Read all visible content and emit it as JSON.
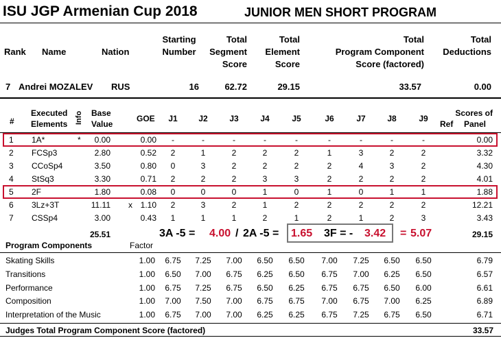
{
  "event_title": "ISU JGP Armenian Cup 2018",
  "segment_title": "JUNIOR MEN SHORT PROGRAM",
  "summary_headers": {
    "rank": "Rank",
    "name": "Name",
    "nation": "Nation",
    "starting_number": [
      "Starting",
      "Number"
    ],
    "tss": [
      "Total",
      "Segment",
      "Score"
    ],
    "tes": [
      "Total",
      "Element",
      "Score"
    ],
    "pcs": [
      "Total",
      "Program  Component",
      "Score (factored)"
    ],
    "ded": [
      "Total",
      "Deductions"
    ]
  },
  "skater": {
    "rank": "7",
    "name": "Andrei MOZALEV",
    "nation": "RUS",
    "starting_number": "16",
    "tss": "62.72",
    "tes": "29.15",
    "pcs": "33.57",
    "deductions": "0.00"
  },
  "elements_headers": {
    "num": "#",
    "executed": [
      "Executed",
      "Elements"
    ],
    "info": "Info",
    "base": [
      "Base",
      "Value"
    ],
    "goe": "GOE",
    "judges": [
      "J1",
      "J2",
      "J3",
      "J4",
      "J5",
      "J6",
      "J7",
      "J8",
      "J9"
    ],
    "ref": "Ref",
    "scores": [
      "Scores of",
      "Panel"
    ]
  },
  "elements": [
    {
      "num": "1",
      "name": "1A*",
      "info": "*",
      "base": "0.00",
      "x": "",
      "goe": "0.00",
      "j": [
        "-",
        "-",
        "-",
        "-",
        "-",
        "-",
        "-",
        "-",
        "-"
      ],
      "panel": "0.00",
      "highlight": true
    },
    {
      "num": "2",
      "name": "FCSp3",
      "info": "",
      "base": "2.80",
      "x": "",
      "goe": "0.52",
      "j": [
        "2",
        "1",
        "2",
        "2",
        "2",
        "1",
        "3",
        "2",
        "2"
      ],
      "panel": "3.32",
      "highlight": false
    },
    {
      "num": "3",
      "name": "CCoSp4",
      "info": "",
      "base": "3.50",
      "x": "",
      "goe": "0.80",
      "j": [
        "0",
        "3",
        "2",
        "2",
        "2",
        "2",
        "4",
        "3",
        "2"
      ],
      "panel": "4.30",
      "highlight": false
    },
    {
      "num": "4",
      "name": "StSq3",
      "info": "",
      "base": "3.30",
      "x": "",
      "goe": "0.71",
      "j": [
        "2",
        "2",
        "2",
        "3",
        "3",
        "2",
        "2",
        "2",
        "2"
      ],
      "panel": "4.01",
      "highlight": false
    },
    {
      "num": "5",
      "name": "2F",
      "info": "",
      "base": "1.80",
      "x": "",
      "goe": "0.08",
      "j": [
        "0",
        "0",
        "0",
        "1",
        "0",
        "1",
        "0",
        "1",
        "1"
      ],
      "panel": "1.88",
      "highlight": true
    },
    {
      "num": "6",
      "name": "3Lz+3T",
      "info": "",
      "base": "11.11",
      "x": "x",
      "goe": "1.10",
      "j": [
        "2",
        "3",
        "2",
        "1",
        "2",
        "2",
        "2",
        "2",
        "2"
      ],
      "panel": "12.21",
      "highlight": false
    },
    {
      "num": "7",
      "name": "CSSp4",
      "info": "",
      "base": "3.00",
      "x": "",
      "goe": "0.43",
      "j": [
        "1",
        "1",
        "1",
        "2",
        "1",
        "2",
        "1",
        "2",
        "3"
      ],
      "panel": "3.43",
      "highlight": false
    }
  ],
  "elements_total": {
    "base": "25.51",
    "panel": "29.15"
  },
  "annotation": {
    "part1": "3A -5 =",
    "val1": "4.00",
    "sep": "/",
    "part2": "2A -5 =",
    "val2": "1.65",
    "part3": "3F = -",
    "val3": "3.42",
    "eq": "=",
    "val4": "5.07",
    "accent_color": "#c8102e"
  },
  "components_header": {
    "title": "Program Components",
    "factor": "Factor"
  },
  "components": [
    {
      "name": "Skating Skills",
      "factor": "1.00",
      "j": [
        "6.75",
        "7.25",
        "7.00",
        "6.50",
        "6.50",
        "7.00",
        "7.25",
        "6.50",
        "6.50"
      ],
      "panel": "6.79"
    },
    {
      "name": "Transitions",
      "factor": "1.00",
      "j": [
        "6.50",
        "7.00",
        "6.75",
        "6.25",
        "6.50",
        "6.75",
        "7.00",
        "6.25",
        "6.50"
      ],
      "panel": "6.57"
    },
    {
      "name": "Performance",
      "factor": "1.00",
      "j": [
        "6.75",
        "7.25",
        "6.75",
        "6.50",
        "6.25",
        "6.75",
        "6.75",
        "6.50",
        "6.00"
      ],
      "panel": "6.61"
    },
    {
      "name": "Composition",
      "factor": "1.00",
      "j": [
        "7.00",
        "7.50",
        "7.00",
        "6.75",
        "6.75",
        "7.00",
        "6.75",
        "7.00",
        "6.25"
      ],
      "panel": "6.89"
    },
    {
      "name": "Interpretation of the Music",
      "factor": "1.00",
      "j": [
        "6.75",
        "7.00",
        "7.00",
        "6.25",
        "6.25",
        "6.75",
        "7.25",
        "6.75",
        "6.50"
      ],
      "panel": "6.71"
    }
  ],
  "judges_total": {
    "label": "Judges Total Program Component Score (factored)",
    "value": "33.57"
  }
}
